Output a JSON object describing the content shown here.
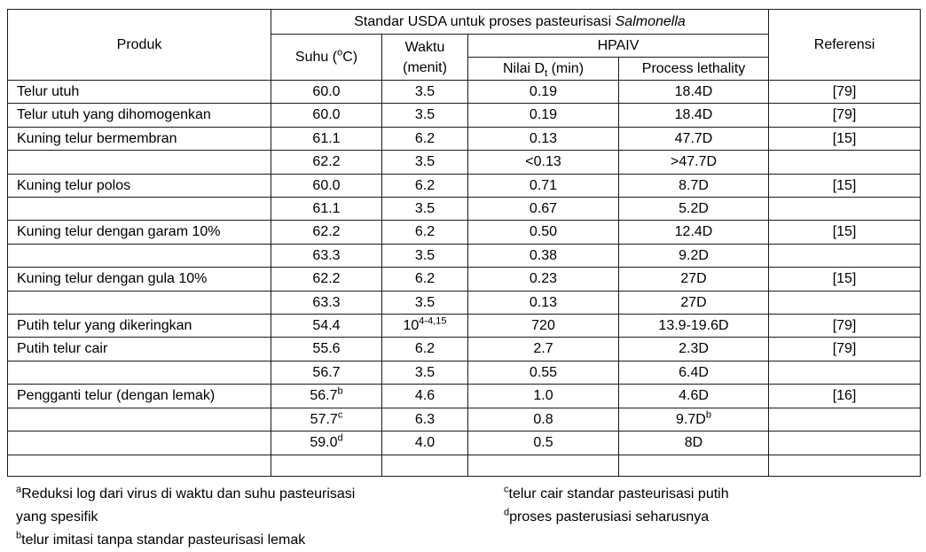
{
  "table": {
    "header": {
      "produk": "Produk",
      "usda_pre": "Standar USDA untuk proses pasteurisasi ",
      "usda_italic": "Salmonella",
      "suhu_pre": "Suhu (",
      "suhu_sup": "o",
      "suhu_post": "C)",
      "waktu_line1": "Waktu",
      "waktu_line2": "(menit)",
      "hpaiv": "HPAIV",
      "dt_pre": "Nilai D",
      "dt_sub": "t",
      "dt_post": " (min)",
      "lethality": "Process lethality",
      "referensi": "Referensi"
    },
    "cell_names": [
      "produk-cell",
      "suhu-cell",
      "waktu-cell",
      "dt-value-cell",
      "lethality-cell",
      "referensi-cell"
    ],
    "rows": [
      {
        "cells": [
          "Telur utuh",
          "60.0",
          "3.5",
          "0.19",
          "18.4D",
          "[79]"
        ]
      },
      {
        "cells": [
          "Telur utuh yang dihomogenkan",
          "60.0",
          "3.5",
          "0.19",
          "18.4D",
          "[79]"
        ]
      },
      {
        "cells": [
          "Kuning telur bermembran",
          "61.1",
          "6.2",
          "0.13",
          "47.7D",
          "[15]"
        ]
      },
      {
        "cells": [
          "",
          "62.2",
          "3.5",
          "<0.13",
          ">47.7D",
          ""
        ]
      },
      {
        "cells": [
          "Kuning telur polos",
          "60.0",
          "6.2",
          "0.71",
          "8.7D",
          "[15]"
        ]
      },
      {
        "cells": [
          "",
          "61.1",
          "3.5",
          "0.67",
          "5.2D",
          ""
        ]
      },
      {
        "cells": [
          "Kuning telur dengan garam 10%",
          "62.2",
          "6.2",
          "0.50",
          "12.4D",
          "[15]"
        ]
      },
      {
        "cells": [
          "",
          "63.3",
          "3.5",
          "0.38",
          "9.2D",
          ""
        ]
      },
      {
        "cells": [
          "Kuning telur dengan gula 10%",
          "62.2",
          "6.2",
          "0.23",
          "27D",
          "[15]"
        ]
      },
      {
        "cells": [
          "",
          "63.3",
          "3.5",
          "0.13",
          "27D",
          ""
        ]
      },
      {
        "cells": [
          "Putih telur yang dikeringkan",
          "54.4",
          {
            "text": "10",
            "sup": "4-4,15"
          },
          "720",
          "13.9-19.6D",
          "[79]"
        ]
      },
      {
        "cells": [
          "Putih telur cair",
          "55.6",
          "6.2",
          "2.7",
          "2.3D",
          "[79]"
        ]
      },
      {
        "cells": [
          "",
          "56.7",
          "3.5",
          "0.55",
          "6.4D",
          ""
        ]
      },
      {
        "cells": [
          "Pengganti telur (dengan lemak)",
          {
            "text": "56.7",
            "sup": "b"
          },
          "4.6",
          "1.0",
          "4.6D",
          "[16]"
        ]
      },
      {
        "cells": [
          "",
          {
            "text": "57.7",
            "sup": "c"
          },
          "6.3",
          "0.8",
          {
            "text": "9.7D",
            "sup": "b"
          },
          ""
        ]
      },
      {
        "cells": [
          "",
          {
            "text": "59.0",
            "sup": "d"
          },
          "4.0",
          "0.5",
          "8D",
          ""
        ]
      },
      {
        "cells": [
          "",
          "",
          "",
          "",
          "",
          ""
        ],
        "empty": true
      }
    ]
  },
  "footnotes": {
    "left": [
      {
        "sup": "a",
        "text": "Reduksi log dari virus di waktu dan suhu pasteurisasi\nyang spesifik"
      },
      {
        "sup": "b",
        "text": "telur imitasi tanpa standar pasteurisasi lemak"
      }
    ],
    "right": [
      {
        "sup": "c",
        "text": "telur cair standar pasteurisasi putih"
      },
      {
        "sup": "d",
        "text": "proses pasterusiasi seharusnya"
      }
    ]
  },
  "colors": {
    "border": "#1a1a1a",
    "text": "#000000",
    "background": "#ffffff"
  }
}
